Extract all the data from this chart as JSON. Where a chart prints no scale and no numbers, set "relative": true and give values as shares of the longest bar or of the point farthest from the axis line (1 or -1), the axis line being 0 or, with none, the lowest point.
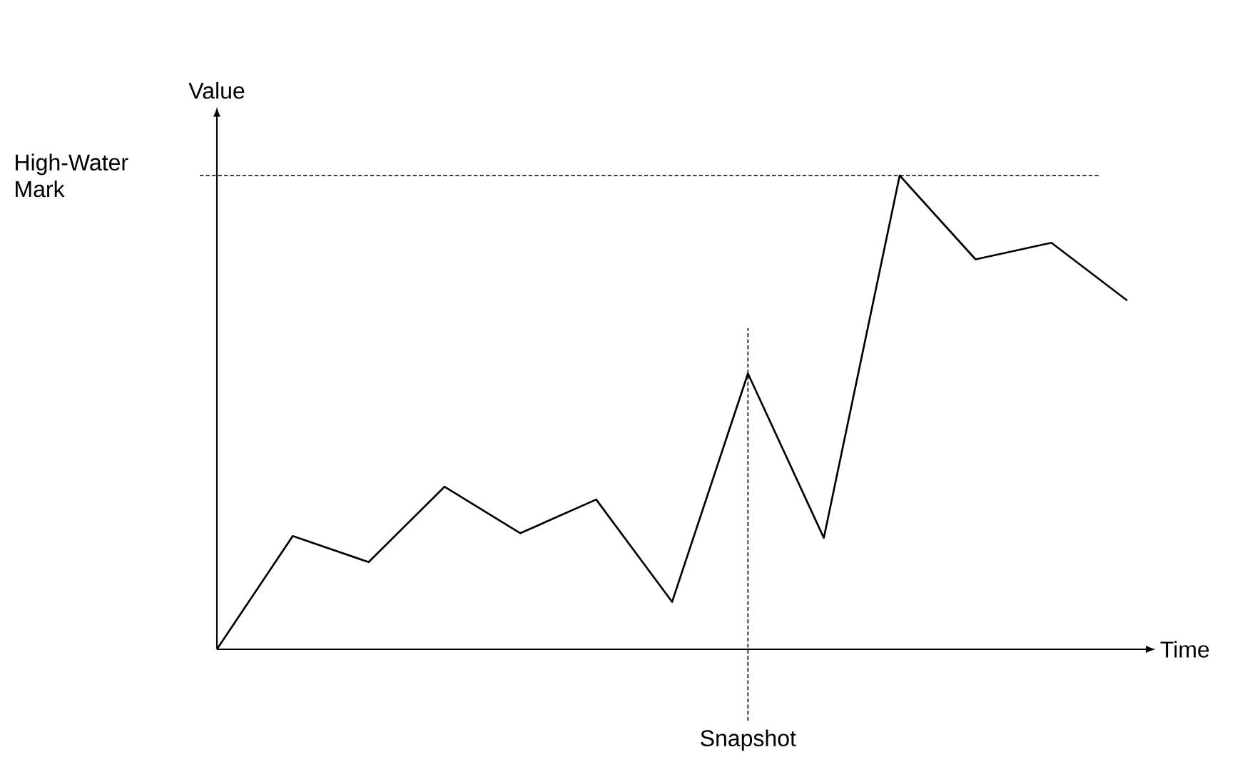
{
  "chart_data": {
    "type": "line",
    "relative": true,
    "xlabel": "Time",
    "ylabel": "Value",
    "categories": [
      null,
      null,
      null,
      null,
      null,
      null,
      null,
      null,
      null,
      null,
      null,
      null,
      null
    ],
    "series": [
      {
        "color": "#000000",
        "values": [
          0,
          0.239,
          0.184,
          0.343,
          0.245,
          0.316,
          0.1,
          0.582,
          0.235,
          1,
          0.823,
          0.858,
          0.736
        ]
      }
    ],
    "annotations": [
      "Snapshot"
    ],
    "ref_lines": [
      {
        "axis": "y",
        "value": 1,
        "label": "High-Water Mark",
        "color": "#000000",
        "line_style": "dashed"
      }
    ]
  }
}
